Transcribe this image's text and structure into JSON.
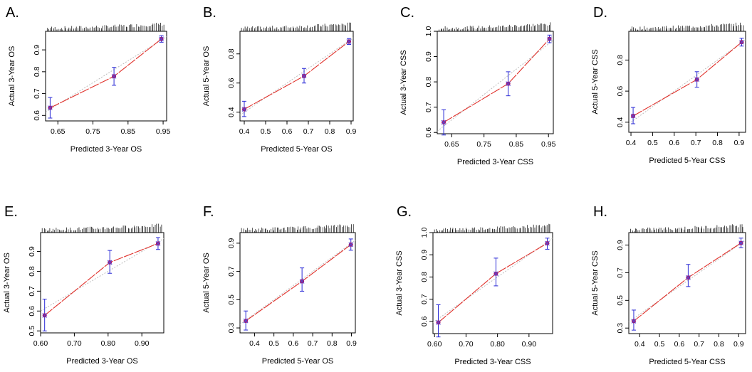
{
  "figure": {
    "colors": {
      "ideal": "#bdbdbd",
      "observed": "#e0302a",
      "error": "#2b2bd6",
      "point": "#a8156e",
      "cross": "#4d4dd8"
    }
  },
  "chart_data": [
    {
      "panel": "A.",
      "type": "line",
      "xlabel": "Predicted 3-Year OS",
      "ylabel": "Actual 3-Year OS",
      "xlim": [
        0.615,
        0.96
      ],
      "ylim": [
        0.575,
        0.985
      ],
      "xticks": [
        "0.65",
        "0.75",
        "0.85",
        "0.95"
      ],
      "yticks": [
        "0.6",
        "0.7",
        "0.8",
        "0.9"
      ],
      "series": [
        {
          "name": "Ideal",
          "x": [
            0.615,
            0.96
          ],
          "y": [
            0.615,
            0.96
          ]
        },
        {
          "name": "Observed",
          "points": [
            {
              "x": 0.628,
              "y": 0.635,
              "lo": 0.588,
              "hi": 0.682
            },
            {
              "x": 0.81,
              "y": 0.779,
              "lo": 0.738,
              "hi": 0.82
            },
            {
              "x": 0.945,
              "y": 0.95,
              "lo": 0.935,
              "hi": 0.965
            }
          ]
        }
      ]
    },
    {
      "panel": "B.",
      "type": "line",
      "xlabel": "Predicted 5-Year OS",
      "ylabel": "Actual 5-Year OS",
      "xlim": [
        0.38,
        0.91
      ],
      "ylim": [
        0.34,
        0.955
      ],
      "xticks": [
        "0.4",
        "0.5",
        "0.6",
        "0.7",
        "0.8",
        "0.9"
      ],
      "yticks": [
        "0.4",
        "0.6",
        "0.8"
      ],
      "series": [
        {
          "name": "Ideal",
          "x": [
            0.38,
            0.91
          ],
          "y": [
            0.38,
            0.91
          ]
        },
        {
          "name": "Observed",
          "points": [
            {
              "x": 0.4,
              "y": 0.42,
              "lo": 0.37,
              "hi": 0.475
            },
            {
              "x": 0.68,
              "y": 0.648,
              "lo": 0.6,
              "hi": 0.7
            },
            {
              "x": 0.89,
              "y": 0.885,
              "lo": 0.865,
              "hi": 0.905
            }
          ]
        }
      ]
    },
    {
      "panel": "C.",
      "type": "line",
      "xlabel": "Predicted 3-Year CSS",
      "ylabel": "Actual 3-Year CSS",
      "xlim": [
        0.605,
        0.965
      ],
      "ylim": [
        0.595,
        1.0
      ],
      "xticks": [
        "0.65",
        "0.75",
        "0.85",
        "0.95"
      ],
      "yticks": [
        "0.6",
        "0.7",
        "0.8",
        "0.9",
        "1.0"
      ],
      "series": [
        {
          "name": "Ideal",
          "x": [
            0.605,
            0.965
          ],
          "y": [
            0.605,
            0.965
          ]
        },
        {
          "name": "Observed",
          "points": [
            {
              "x": 0.625,
              "y": 0.64,
              "lo": 0.59,
              "hi": 0.69
            },
            {
              "x": 0.825,
              "y": 0.793,
              "lo": 0.745,
              "hi": 0.84
            },
            {
              "x": 0.953,
              "y": 0.97,
              "lo": 0.955,
              "hi": 0.985
            }
          ]
        }
      ]
    },
    {
      "panel": "D.",
      "type": "line",
      "xlabel": "Predicted 5-Year CSS",
      "ylabel": "Actual 5-Year CSS",
      "xlim": [
        0.39,
        0.93
      ],
      "ylim": [
        0.335,
        0.985
      ],
      "xticks": [
        "0.4",
        "0.5",
        "0.6",
        "0.7",
        "0.8",
        "0.9"
      ],
      "yticks": [
        "0.4",
        "0.6",
        "0.8"
      ],
      "series": [
        {
          "name": "Ideal",
          "x": [
            0.39,
            0.93
          ],
          "y": [
            0.39,
            0.93
          ]
        },
        {
          "name": "Observed",
          "points": [
            {
              "x": 0.41,
              "y": 0.44,
              "lo": 0.39,
              "hi": 0.495
            },
            {
              "x": 0.705,
              "y": 0.675,
              "lo": 0.625,
              "hi": 0.725
            },
            {
              "x": 0.912,
              "y": 0.915,
              "lo": 0.89,
              "hi": 0.94
            }
          ]
        }
      ]
    },
    {
      "panel": "E.",
      "type": "line",
      "xlabel": "Predicted 3-Year OS",
      "ylabel": "Actual 3-Year OS",
      "xlim": [
        0.6,
        0.965
      ],
      "ylim": [
        0.49,
        0.995
      ],
      "xticks": [
        "0.60",
        "0.70",
        "0.80",
        "0.90"
      ],
      "yticks": [
        "0.5",
        "0.6",
        "0.7",
        "0.8",
        "0.9"
      ],
      "series": [
        {
          "name": "Ideal",
          "x": [
            0.6,
            0.965
          ],
          "y": [
            0.6,
            0.965
          ]
        },
        {
          "name": "Observed",
          "points": [
            {
              "x": 0.612,
              "y": 0.578,
              "lo": 0.5,
              "hi": 0.66
            },
            {
              "x": 0.805,
              "y": 0.845,
              "lo": 0.79,
              "hi": 0.905
            },
            {
              "x": 0.948,
              "y": 0.94,
              "lo": 0.91,
              "hi": 0.97
            }
          ]
        }
      ]
    },
    {
      "panel": "F.",
      "type": "line",
      "xlabel": "Predicted 5-Year OS",
      "ylabel": "Actual 5-Year OS",
      "xlim": [
        0.325,
        0.92
      ],
      "ylim": [
        0.265,
        0.975
      ],
      "xticks": [
        "0.4",
        "0.5",
        "0.6",
        "0.7",
        "0.8",
        "0.9"
      ],
      "yticks": [
        "0.3",
        "0.5",
        "0.7",
        "0.9"
      ],
      "series": [
        {
          "name": "Ideal",
          "x": [
            0.325,
            0.92
          ],
          "y": [
            0.325,
            0.92
          ]
        },
        {
          "name": "Observed",
          "points": [
            {
              "x": 0.355,
              "y": 0.35,
              "lo": 0.285,
              "hi": 0.42
            },
            {
              "x": 0.645,
              "y": 0.63,
              "lo": 0.56,
              "hi": 0.725
            },
            {
              "x": 0.897,
              "y": 0.89,
              "lo": 0.85,
              "hi": 0.93
            }
          ]
        }
      ]
    },
    {
      "panel": "G.",
      "type": "line",
      "xlabel": "Predicted 3-Year CSS",
      "ylabel": "Actual 3-Year CSS",
      "xlim": [
        0.595,
        0.975
      ],
      "ylim": [
        0.545,
        1.0
      ],
      "xticks": [
        "0.60",
        "0.70",
        "0.80",
        "0.90"
      ],
      "yticks": [
        "0.6",
        "0.7",
        "0.8",
        "0.9",
        "1.0"
      ],
      "series": [
        {
          "name": "Ideal",
          "x": [
            0.595,
            0.975
          ],
          "y": [
            0.595,
            0.975
          ]
        },
        {
          "name": "Observed",
          "points": [
            {
              "x": 0.612,
              "y": 0.595,
              "lo": 0.53,
              "hi": 0.675
            },
            {
              "x": 0.795,
              "y": 0.815,
              "lo": 0.76,
              "hi": 0.885
            },
            {
              "x": 0.958,
              "y": 0.952,
              "lo": 0.925,
              "hi": 0.975
            }
          ]
        }
      ]
    },
    {
      "panel": "H.",
      "type": "line",
      "xlabel": "Predicted 5-Year CSS",
      "ylabel": "Actual 5-Year CSS",
      "xlim": [
        0.345,
        0.935
      ],
      "ylim": [
        0.26,
        0.99
      ],
      "xticks": [
        "0.4",
        "0.5",
        "0.6",
        "0.7",
        "0.8",
        "0.9"
      ],
      "yticks": [
        "0.3",
        "0.5",
        "0.7",
        "0.9"
      ],
      "series": [
        {
          "name": "Ideal",
          "x": [
            0.345,
            0.935
          ],
          "y": [
            0.345,
            0.935
          ]
        },
        {
          "name": "Observed",
          "points": [
            {
              "x": 0.37,
              "y": 0.35,
              "lo": 0.285,
              "hi": 0.43
            },
            {
              "x": 0.645,
              "y": 0.665,
              "lo": 0.6,
              "hi": 0.76
            },
            {
              "x": 0.912,
              "y": 0.915,
              "lo": 0.88,
              "hi": 0.95
            }
          ]
        }
      ]
    }
  ]
}
